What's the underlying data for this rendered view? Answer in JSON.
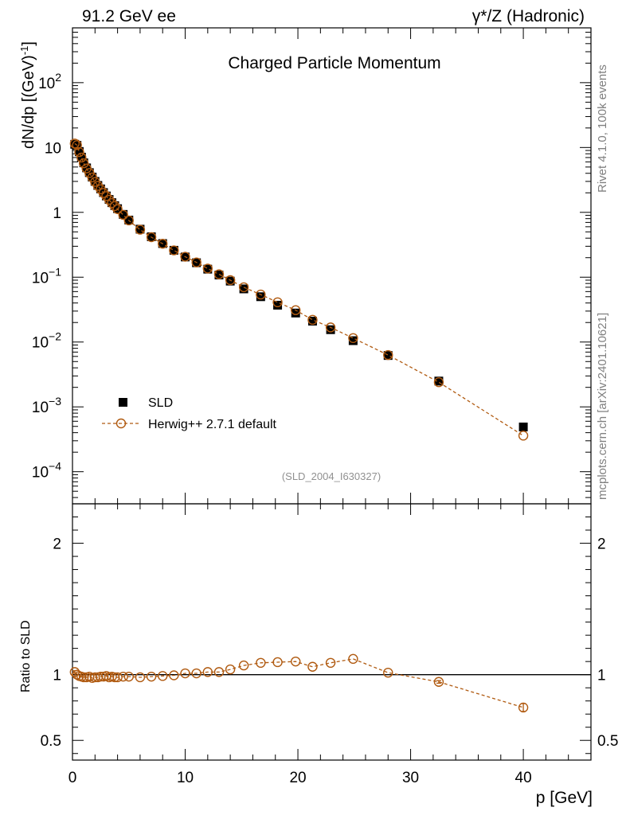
{
  "header": {
    "left_title": "91.2 GeV ee",
    "right_title": "γ*/Z (Hadronic)",
    "plot_title": "Charged Particle Momentum",
    "side_text_top": "Rivet 4.1.0,  100k events",
    "side_text_bottom": "mcplots.cern.ch [arXiv:2401.10621]",
    "analysis_id": "(SLD_2004_I630327)"
  },
  "colors": {
    "data": "#000000",
    "mc": "#b05a10",
    "axis": "#000000",
    "side_text": "#808080"
  },
  "chart_data": [
    {
      "type": "scatter",
      "title": "Charged Particle Momentum",
      "xlabel": "p [GeV]",
      "ylabel": "dN/dp [(GeV)^-1]",
      "yscale": "log",
      "xlim": [
        0,
        46
      ],
      "ylim": [
        3.2e-05,
        700
      ],
      "xticks": [
        0,
        10,
        20,
        30,
        40
      ],
      "yticks": [
        {
          "value": 0.0001,
          "mant": "10",
          "exp": "−4"
        },
        {
          "value": 0.001,
          "mant": "10",
          "exp": "−3"
        },
        {
          "value": 0.01,
          "mant": "10",
          "exp": "−2"
        },
        {
          "value": 0.1,
          "mant": "10",
          "exp": "−1"
        },
        {
          "value": 1,
          "mant": "1",
          "exp": ""
        },
        {
          "value": 10,
          "mant": "10",
          "exp": ""
        },
        {
          "value": 100,
          "mant": "10",
          "exp": "2"
        }
      ],
      "legend": [
        {
          "label": "SLD",
          "style": "data"
        },
        {
          "label": "Herwig++ 2.7.1 default",
          "style": "mc"
        }
      ],
      "series": [
        {
          "name": "SLD",
          "x": [
            0.2,
            0.4,
            0.6,
            0.8,
            1.0,
            1.25,
            1.5,
            1.75,
            2.0,
            2.25,
            2.5,
            2.75,
            3.0,
            3.25,
            3.5,
            3.75,
            4.0,
            4.5,
            5.0,
            6.0,
            7.0,
            8.0,
            9.0,
            10.0,
            11.0,
            12.0,
            13.0,
            14.0,
            15.2,
            16.7,
            18.2,
            19.8,
            21.3,
            22.9,
            24.9,
            28.0,
            32.5,
            40.0
          ],
          "values": [
            11.2,
            10.8,
            8.6,
            7.1,
            5.8,
            4.85,
            4.1,
            3.5,
            3.0,
            2.6,
            2.3,
            2.02,
            1.79,
            1.58,
            1.41,
            1.27,
            1.14,
            0.93,
            0.76,
            0.55,
            0.42,
            0.33,
            0.26,
            0.205,
            0.167,
            0.133,
            0.108,
            0.087,
            0.066,
            0.05,
            0.037,
            0.028,
            0.021,
            0.0155,
            0.0105,
            0.0062,
            0.0025,
            0.00049
          ]
        },
        {
          "name": "Herwig++ 2.7.1 default",
          "x": [
            0.2,
            0.4,
            0.6,
            0.8,
            1.0,
            1.25,
            1.5,
            1.75,
            2.0,
            2.25,
            2.5,
            2.75,
            3.0,
            3.25,
            3.5,
            3.75,
            4.0,
            4.5,
            5.0,
            6.0,
            7.0,
            8.0,
            9.0,
            10.0,
            11.0,
            12.0,
            13.0,
            14.0,
            15.2,
            16.7,
            18.2,
            19.8,
            21.3,
            22.9,
            24.9,
            28.0,
            32.5,
            40.0
          ],
          "values": [
            11.5,
            10.9,
            8.5,
            7.0,
            5.7,
            4.75,
            4.05,
            3.45,
            2.95,
            2.56,
            2.27,
            1.99,
            1.78,
            1.56,
            1.39,
            1.25,
            1.12,
            0.915,
            0.75,
            0.54,
            0.414,
            0.328,
            0.259,
            0.207,
            0.169,
            0.136,
            0.111,
            0.09,
            0.07,
            0.054,
            0.041,
            0.031,
            0.022,
            0.0168,
            0.0115,
            0.0063,
            0.0024,
            0.00036
          ]
        }
      ]
    },
    {
      "type": "scatter",
      "xlabel": "p [GeV]",
      "ylabel": "Ratio to SLD",
      "xlim": [
        0,
        46
      ],
      "ylim": [
        0.35,
        2.3
      ],
      "reference_line": 1,
      "xticks": [
        0,
        10,
        20,
        30,
        40
      ],
      "yticks": [
        0.5,
        1,
        2
      ],
      "series": [
        {
          "name": "Herwig++ 2.7.1 default / SLD",
          "x": [
            0.2,
            0.4,
            0.6,
            0.8,
            1.0,
            1.25,
            1.5,
            1.75,
            2.0,
            2.25,
            2.5,
            2.75,
            3.0,
            3.25,
            3.5,
            3.75,
            4.0,
            4.5,
            5.0,
            6.0,
            7.0,
            8.0,
            9.0,
            10.0,
            11.0,
            12.0,
            13.0,
            14.0,
            15.2,
            16.7,
            18.2,
            19.8,
            21.3,
            22.9,
            24.9,
            28.0,
            32.5,
            40.0
          ],
          "values": [
            1.02,
            1.0,
            0.99,
            0.985,
            0.98,
            0.98,
            0.985,
            0.975,
            0.98,
            0.98,
            0.985,
            0.985,
            0.99,
            0.98,
            0.985,
            0.98,
            0.98,
            0.985,
            0.985,
            0.98,
            0.985,
            0.99,
            0.995,
            1.01,
            1.01,
            1.02,
            1.02,
            1.04,
            1.07,
            1.09,
            1.095,
            1.1,
            1.06,
            1.09,
            1.12,
            1.015,
            0.945,
            0.75
          ],
          "errors": [
            0.01,
            0.005,
            0.005,
            0.005,
            0.005,
            0.005,
            0.005,
            0.005,
            0.005,
            0.005,
            0.005,
            0.005,
            0.005,
            0.005,
            0.005,
            0.005,
            0.005,
            0.005,
            0.005,
            0.005,
            0.005,
            0.005,
            0.005,
            0.005,
            0.005,
            0.005,
            0.005,
            0.005,
            0.005,
            0.005,
            0.005,
            0.005,
            0.005,
            0.005,
            0.005,
            0.005,
            0.01,
            0.03
          ]
        }
      ]
    }
  ]
}
